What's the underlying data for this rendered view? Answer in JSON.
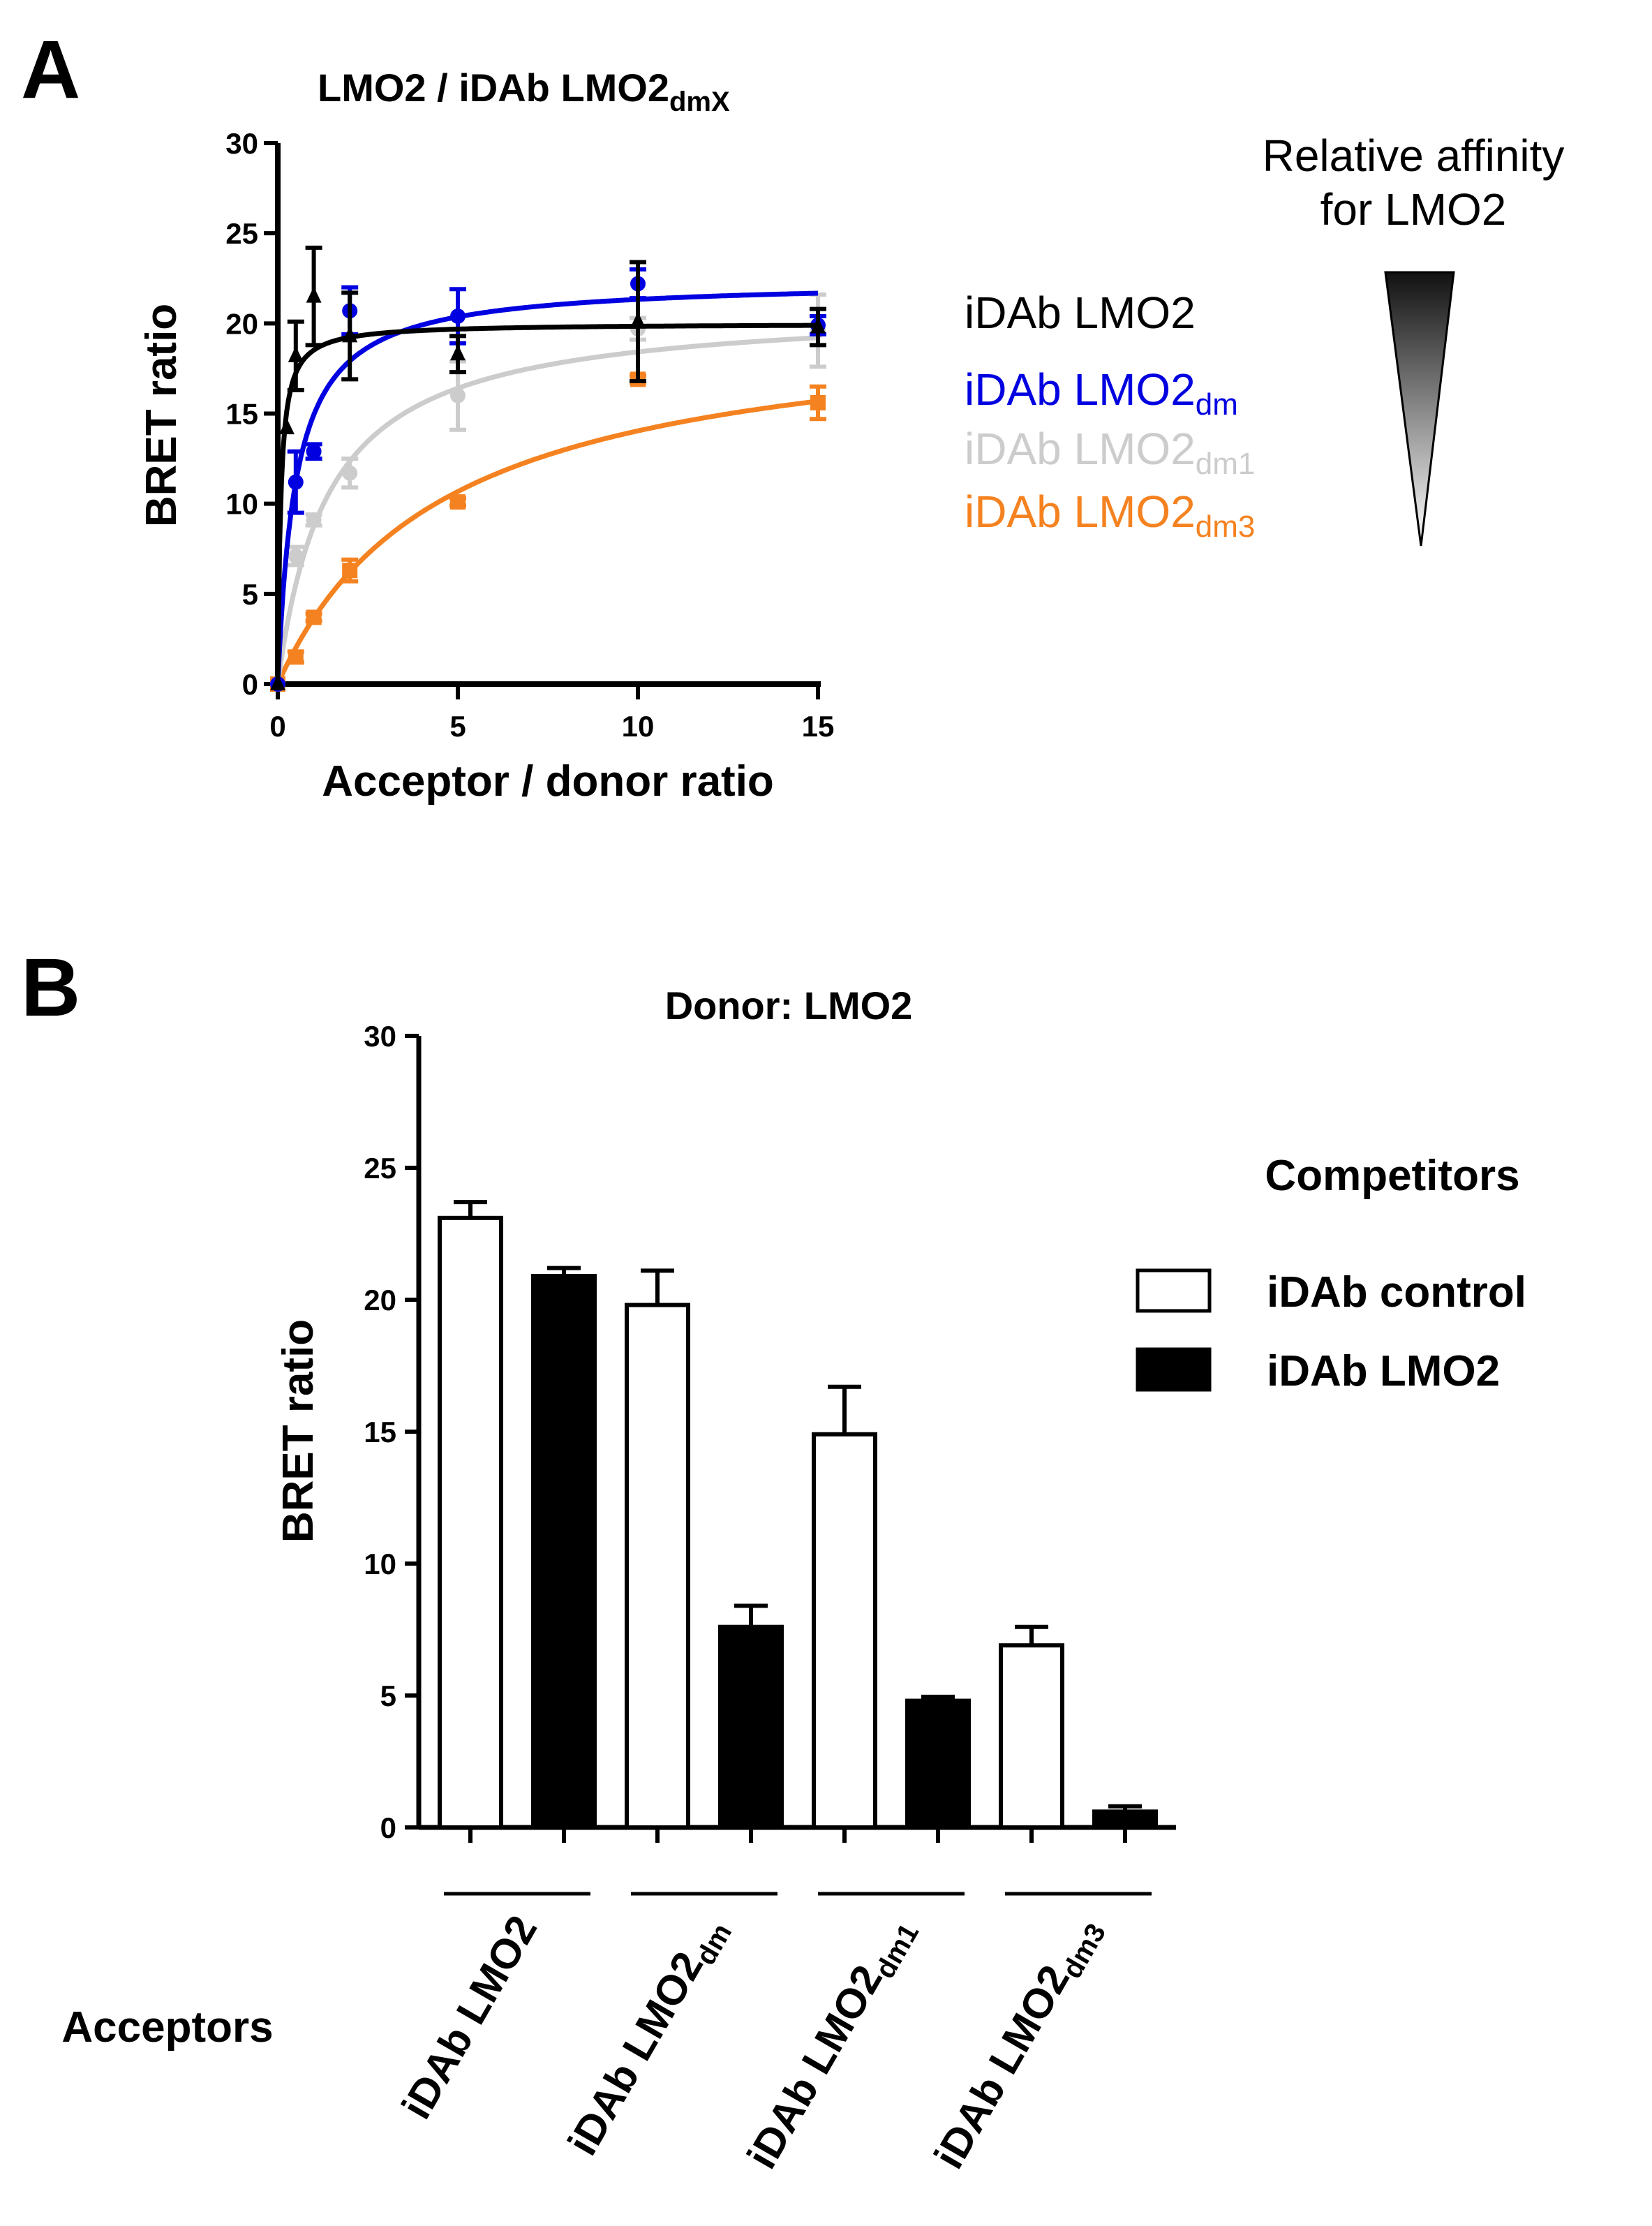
{
  "figure": {
    "panel_a_letter": "A",
    "panel_b_letter": "B"
  },
  "chart_data": [
    {
      "type": "scatter",
      "panel": "A",
      "title": "LMO2 / iDAb LMO2",
      "title_subscript": "dmX",
      "xlabel": "Acceptor / donor ratio",
      "ylabel": "BRET ratio",
      "xlim": [
        0,
        15
      ],
      "ylim": [
        0,
        30
      ],
      "xticks": [
        "0",
        "5",
        "10",
        "15"
      ],
      "yticks": [
        "0",
        "5",
        "10",
        "15",
        "20",
        "25",
        "30"
      ],
      "xtick_values": [
        0,
        5,
        10,
        15
      ],
      "ytick_values": [
        0,
        5,
        10,
        15,
        20,
        25,
        30
      ],
      "grid": false,
      "legend_position": "right",
      "affinity_note": {
        "line1": "Relative affinity",
        "line2": "for LMO2"
      },
      "series": [
        {
          "name": "iDAb LMO2",
          "name_main": "iDAb LMO2",
          "name_sub": "",
          "color": "#000000",
          "marker": "triangle",
          "x": [
            0,
            0.25,
            0.5,
            1,
            2,
            5,
            10,
            15
          ],
          "y": [
            0,
            14.2,
            18.2,
            21.5,
            19.3,
            18.3,
            20.1,
            19.8
          ],
          "err": [
            0,
            0,
            1.9,
            2.7,
            2.4,
            1.0,
            3.3,
            1.0
          ],
          "fit": {
            "bmax": 20.0,
            "kd": 0.08
          }
        },
        {
          "name": "iDAb LMO2dm",
          "name_main": "iDAb LMO2",
          "name_sub": "dm",
          "color": "#0000e0",
          "marker": "circle",
          "x": [
            0,
            0.5,
            1,
            2,
            5,
            10,
            15
          ],
          "y": [
            0,
            11.2,
            12.9,
            20.7,
            20.4,
            22.2,
            19.9
          ],
          "err": [
            0,
            1.7,
            0.4,
            1.3,
            1.5,
            0.8,
            0.5
          ],
          "fit": {
            "bmax": 22.4,
            "kd": 0.5
          }
        },
        {
          "name": "iDAb LMO2dm1",
          "name_main": "iDAb LMO2",
          "name_sub": "dm1",
          "color": "#cccccc",
          "marker": "circle",
          "x": [
            0,
            0.5,
            1,
            2,
            5,
            10,
            15
          ],
          "y": [
            0,
            7.1,
            9.1,
            11.7,
            16.0,
            19.7,
            19.6
          ],
          "err": [
            0,
            0.5,
            0.3,
            0.8,
            1.9,
            0.6,
            2.0
          ],
          "fit": {
            "bmax": 21.0,
            "kd": 1.4
          }
        },
        {
          "name": "iDAb LMO2dm3",
          "name_main": "iDAb LMO2",
          "name_sub": "dm3",
          "color": "#f58220",
          "marker": "square",
          "x": [
            0,
            0.5,
            1,
            2,
            5,
            10,
            15
          ],
          "y": [
            0,
            1.5,
            3.7,
            6.3,
            10.1,
            16.9,
            15.6
          ],
          "err": [
            0,
            0.3,
            0.2,
            0.6,
            0.2,
            0.2,
            0.9
          ],
          "fit": {
            "bmax": 20.5,
            "kd": 4.6
          }
        }
      ]
    },
    {
      "type": "bar",
      "panel": "B",
      "title": "Donor: LMO2",
      "xlabel": "Acceptors",
      "ylabel": "BRET ratio",
      "ylim": [
        0,
        30
      ],
      "yticks": [
        "0",
        "5",
        "10",
        "15",
        "20",
        "25",
        "30"
      ],
      "ytick_values": [
        0,
        5,
        10,
        15,
        20,
        25,
        30
      ],
      "grid": false,
      "legend_title": "Competitors",
      "legend_position": "right",
      "categories": [
        {
          "main": "iDAb LMO2",
          "sub": ""
        },
        {
          "main": "iDAb LMO2",
          "sub": "dm"
        },
        {
          "main": "iDAb LMO2",
          "sub": "dm1"
        },
        {
          "main": "iDAb LMO2",
          "sub": "dm3"
        }
      ],
      "series": [
        {
          "name": "iDAb control",
          "fill": "#ffffff",
          "values": [
            23.1,
            19.8,
            14.9,
            6.9
          ],
          "err": [
            0.6,
            1.3,
            1.8,
            0.7
          ]
        },
        {
          "name": "iDAb LMO2",
          "fill": "#000000",
          "values": [
            20.9,
            7.6,
            4.8,
            0.6
          ],
          "err": [
            0.3,
            0.8,
            0.15,
            0.2
          ]
        }
      ]
    }
  ]
}
